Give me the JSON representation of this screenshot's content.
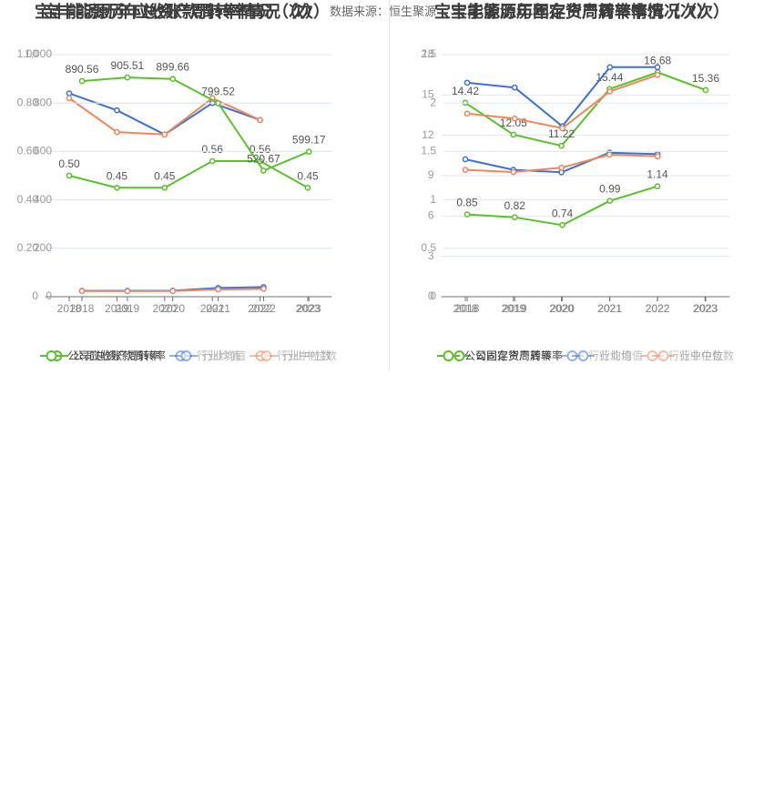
{
  "source": {
    "label": "数据来源：",
    "name": "恒生聚源"
  },
  "chart_data": [
    {
      "type": "line",
      "title": "宝丰能源历年总资产周转率情况（次）",
      "xlabel": "",
      "ylabel": "",
      "categories": [
        "2018",
        "2019",
        "2020",
        "2021",
        "2022",
        "2023"
      ],
      "ylim": [
        0,
        1
      ],
      "yticks": [
        0,
        0.2,
        0.4,
        0.6,
        0.8,
        1
      ],
      "ytick_labels": [
        "0",
        "0.20",
        "0.40",
        "0.60",
        "0.80",
        "1.00"
      ],
      "grid": true,
      "legend": "bottom",
      "series": [
        {
          "name": "公司总资产周转率",
          "color": "#5ac229",
          "values": [
            0.5,
            0.45,
            0.45,
            0.56,
            0.56,
            0.45
          ],
          "labels": [
            "0.50",
            "0.45",
            "0.45",
            "0.56",
            "0.56",
            "0.45"
          ]
        },
        {
          "name": "行业均值",
          "color": "#3a72d9",
          "values": [
            0.84,
            0.77,
            0.67,
            0.8,
            0.73,
            null
          ]
        },
        {
          "name": "行业中位数",
          "color": "#f2865a",
          "values": [
            0.82,
            0.68,
            0.67,
            0.82,
            0.73,
            null
          ]
        }
      ]
    },
    {
      "type": "line",
      "title": "宝丰能源历年应收账款周转率情况（次）",
      "xlabel": "",
      "ylabel": "",
      "categories": [
        "2018",
        "2019",
        "2020",
        "2021",
        "2022",
        "2023"
      ],
      "ylim": [
        0,
        1000
      ],
      "yticks": [
        0,
        200,
        400,
        600,
        800,
        1000
      ],
      "ytick_labels": [
        "0",
        "200",
        "400",
        "600",
        "800",
        "1,000"
      ],
      "grid": true,
      "legend": "bottom",
      "series": [
        {
          "name": "公司应收账款周转率",
          "color": "#5ac229",
          "values": [
            890.56,
            905.51,
            899.66,
            799.52,
            520.67,
            599.17
          ],
          "labels": [
            "890.56",
            "905.51",
            "899.66",
            "799.52",
            "520.67",
            "599.17"
          ]
        },
        {
          "name": "行业均值",
          "color": "#3a72d9",
          "values": [
            24.6,
            24.3,
            24.8,
            36.2,
            39.8,
            null
          ]
        },
        {
          "name": "行业中位数",
          "color": "#f2865a",
          "values": [
            23.4,
            22.8,
            23.5,
            30.1,
            32.3,
            null
          ]
        }
      ]
    },
    {
      "type": "line",
      "title": "宝丰能源历年固定资产周转率情况（次）",
      "xlabel": "",
      "ylabel": "",
      "categories": [
        "2018",
        "2019",
        "2020",
        "2021",
        "2022",
        "2023"
      ],
      "ylim": [
        0,
        2.5
      ],
      "yticks": [
        0,
        0.5,
        1,
        1.5,
        2,
        2.5
      ],
      "ytick_labels": [
        "0",
        "0.5",
        "1",
        "1.5",
        "2",
        "2.5"
      ],
      "grid": true,
      "legend": "bottom",
      "series": [
        {
          "name": "公司固定资产周转率",
          "color": "#5ac229",
          "values": [
            0.85,
            0.82,
            0.74,
            0.99,
            1.14,
            null
          ],
          "labels": [
            "0.85",
            "0.82",
            "0.74",
            "0.99",
            "1.14",
            null
          ]
        },
        {
          "name": "行业均值",
          "color": "#3a72d9",
          "values": [
            2.21,
            2.16,
            1.76,
            2.37,
            2.37,
            null
          ]
        },
        {
          "name": "行业中位数",
          "color": "#f2865a",
          "values": [
            1.89,
            1.84,
            1.74,
            2.12,
            2.29,
            null
          ]
        }
      ]
    },
    {
      "type": "line",
      "title": "宝丰能源历年存货周转率情况（次）",
      "xlabel": "",
      "ylabel": "",
      "categories": [
        "2018",
        "2019",
        "2020",
        "2021",
        "2022",
        "2023"
      ],
      "ylim": [
        0,
        18
      ],
      "yticks": [
        0,
        3,
        6,
        9,
        12,
        15,
        18
      ],
      "ytick_labels": [
        "0",
        "3",
        "6",
        "9",
        "12",
        "15",
        "18"
      ],
      "grid": true,
      "legend": "bottom",
      "series": [
        {
          "name": "公司存货周转率",
          "color": "#5ac229",
          "values": [
            14.42,
            12.05,
            11.22,
            15.44,
            16.68,
            15.36
          ],
          "labels": [
            "14.42",
            "12.05",
            "11.22",
            "15.44",
            "16.68",
            "15.36"
          ]
        },
        {
          "name": "行业均值",
          "color": "#3a72d9",
          "values": [
            10.22,
            9.43,
            9.25,
            10.71,
            10.6,
            null
          ]
        },
        {
          "name": "行业中位数",
          "color": "#f2865a",
          "values": [
            9.43,
            9.27,
            9.59,
            10.56,
            10.44,
            null
          ]
        }
      ]
    }
  ]
}
